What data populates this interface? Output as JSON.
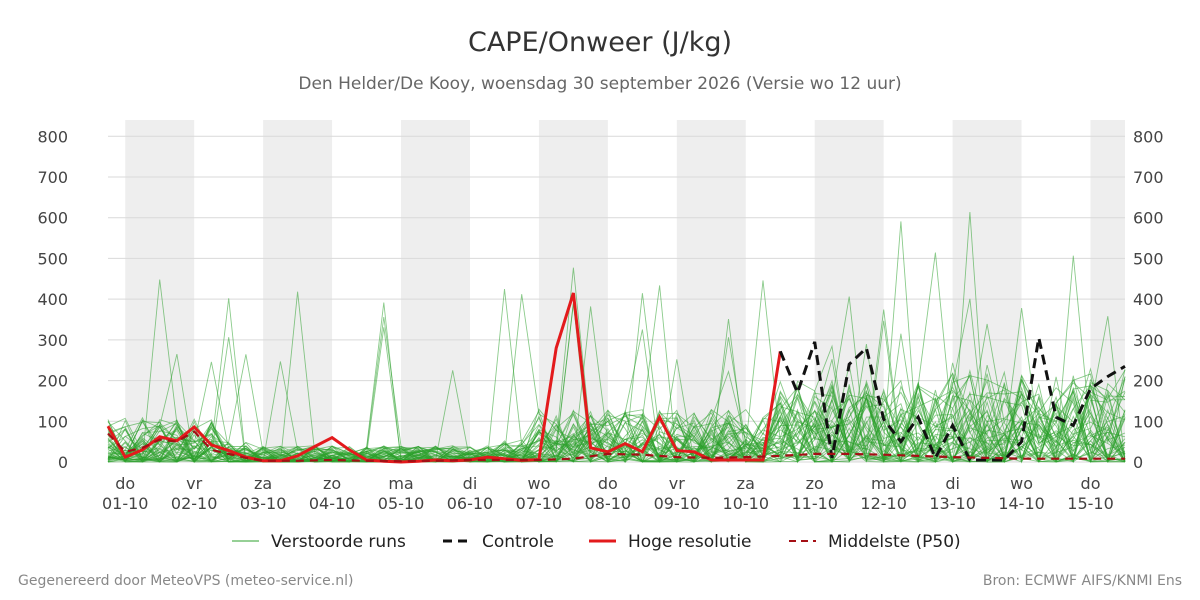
{
  "chart_data": {
    "type": "line",
    "title": "CAPE/Onweer (J/kg)",
    "subtitle": "Den Helder/De Kooy, woensdag 30 september 2026 (Versie wo 12 uur)",
    "ylim": [
      0,
      840
    ],
    "yticks": [
      0,
      100,
      200,
      300,
      400,
      500,
      600,
      700,
      800
    ],
    "xlim": [
      -0.25,
      14.5
    ],
    "day_labels": [
      {
        "day": "do",
        "date": "01-10"
      },
      {
        "day": "vr",
        "date": "02-10"
      },
      {
        "day": "za",
        "date": "03-10"
      },
      {
        "day": "zo",
        "date": "04-10"
      },
      {
        "day": "ma",
        "date": "05-10"
      },
      {
        "day": "di",
        "date": "06-10"
      },
      {
        "day": "wo",
        "date": "07-10"
      },
      {
        "day": "do",
        "date": "08-10"
      },
      {
        "day": "vr",
        "date": "09-10"
      },
      {
        "day": "za",
        "date": "10-10"
      },
      {
        "day": "zo",
        "date": "11-10"
      },
      {
        "day": "ma",
        "date": "12-10"
      },
      {
        "day": "di",
        "date": "13-10"
      },
      {
        "day": "wo",
        "date": "14-10"
      },
      {
        "day": "do",
        "date": "15-10"
      }
    ],
    "weekend_shading": [
      [
        0,
        1
      ],
      [
        2,
        3
      ],
      [
        4,
        5
      ],
      [
        6,
        7
      ],
      [
        8,
        9
      ],
      [
        10,
        11
      ],
      [
        12,
        13
      ],
      [
        14,
        14.5
      ]
    ],
    "grid": true,
    "legend_position": "bottom",
    "ensemble_color": "#2ca02c",
    "control_color": "#111111",
    "hires_color": "#e31a1c",
    "median_color": "#a50f15",
    "series": [
      {
        "name": "Hoge resolutie",
        "style": "hires",
        "x": [
          -0.25,
          0,
          0.25,
          0.5,
          0.75,
          1,
          1.25,
          1.5,
          1.75,
          2,
          2.25,
          2.5,
          2.75,
          3,
          3.25,
          3.5,
          3.75,
          4,
          4.25,
          4.5,
          4.75,
          5,
          5.25,
          5.5,
          5.75,
          6,
          6.25,
          6.5,
          6.75,
          7,
          7.25,
          7.5,
          7.75,
          8,
          8.25,
          8.5,
          8.75,
          9,
          9.25,
          9.5
        ],
        "values": [
          88,
          12,
          30,
          62,
          52,
          86,
          42,
          28,
          12,
          3,
          3,
          15,
          38,
          60,
          30,
          5,
          2,
          0,
          2,
          5,
          3,
          5,
          12,
          8,
          4,
          6,
          280,
          415,
          35,
          25,
          45,
          25,
          110,
          28,
          25,
          5,
          5,
          5,
          5,
          272
        ]
      },
      {
        "name": "Controle",
        "style": "control",
        "x": [
          9.5,
          9.75,
          10,
          10.25,
          10.5,
          10.75,
          11,
          11.25,
          11.5,
          11.75,
          12,
          12.25,
          12.5,
          12.75,
          13,
          13.25,
          13.5,
          13.75,
          14,
          14.25,
          14.5
        ],
        "values": [
          272,
          170,
          295,
          10,
          240,
          280,
          105,
          50,
          110,
          10,
          90,
          5,
          5,
          5,
          50,
          305,
          110,
          90,
          180,
          210,
          235
        ]
      },
      {
        "name": "Middelste (P50)",
        "style": "median",
        "x": [
          -0.25,
          0,
          0.25,
          0.5,
          0.75,
          1,
          1.25,
          1.5,
          1.75,
          2,
          2.5,
          3,
          3.5,
          4,
          4.5,
          5,
          5.5,
          6,
          6.5,
          7,
          7.5,
          8,
          8.5,
          9,
          9.5,
          10,
          10.5,
          11,
          11.5,
          12,
          12.5,
          13,
          13.5,
          14,
          14.5
        ],
        "values": [
          70,
          25,
          35,
          55,
          50,
          75,
          30,
          20,
          10,
          3,
          3,
          5,
          3,
          2,
          3,
          5,
          5,
          5,
          8,
          20,
          18,
          12,
          10,
          12,
          15,
          20,
          20,
          18,
          15,
          12,
          10,
          8,
          8,
          8,
          8
        ]
      }
    ],
    "ensemble_note_seed": 7
  },
  "legend": [
    {
      "label": "Verstoorde runs",
      "style": "ensemble"
    },
    {
      "label": "Controle",
      "style": "control"
    },
    {
      "label": "Hoge resolutie",
      "style": "hires"
    },
    {
      "label": "Middelste (P50)",
      "style": "median"
    }
  ],
  "footer": {
    "left": "Gegenereerd door MeteoVPS (meteo-service.nl)",
    "right": "Bron: ECMWF AIFS/KNMI Ens"
  }
}
